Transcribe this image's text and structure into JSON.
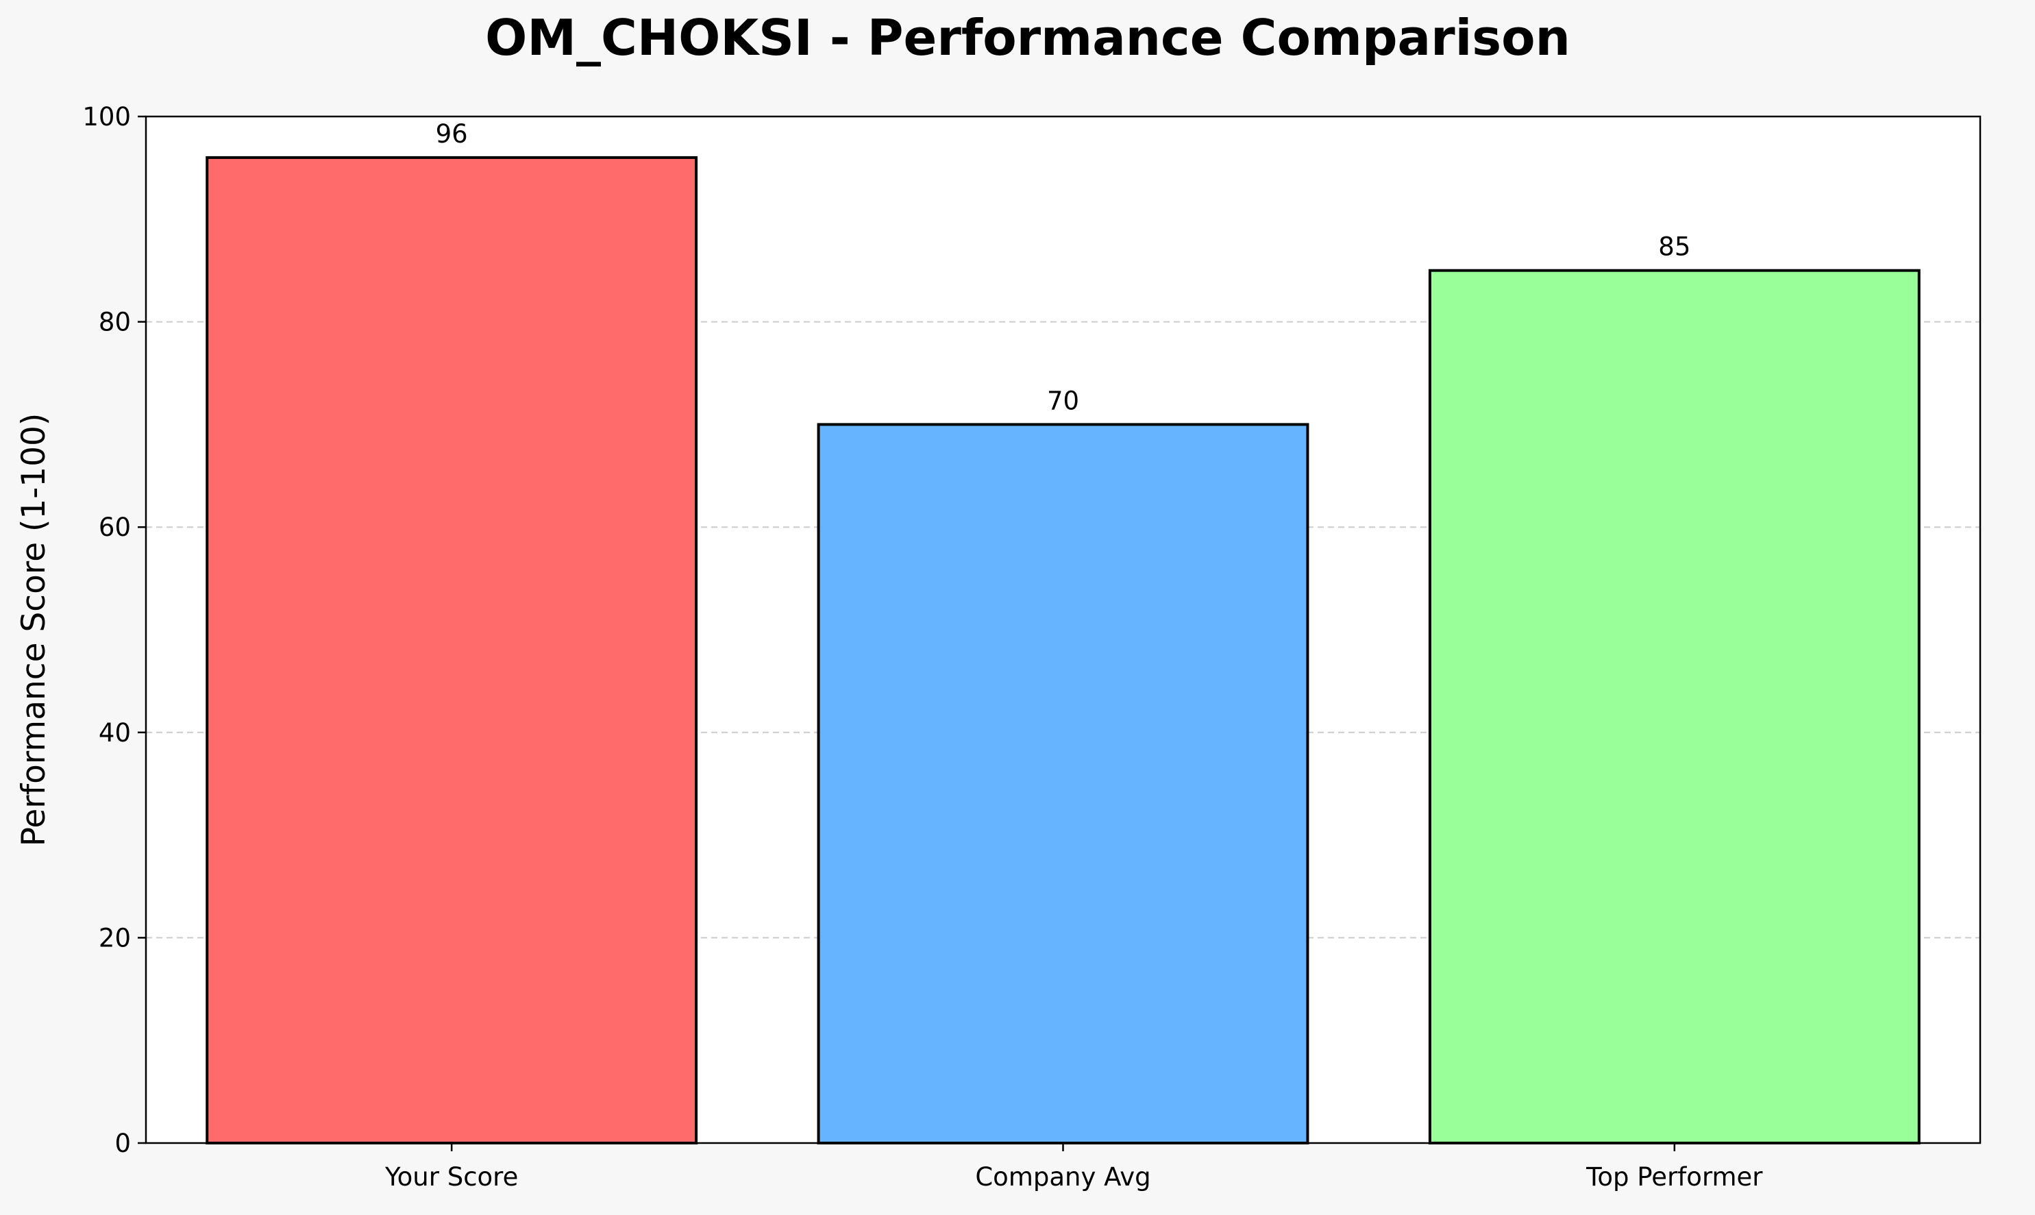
{
  "chart_data": {
    "type": "bar",
    "title": "OM_CHOKSI - Performance Comparison",
    "xlabel": "",
    "ylabel": "Performance Score (1-100)",
    "categories": [
      "Your Score",
      "Company Avg",
      "Top Performer"
    ],
    "values": [
      96,
      70,
      85
    ],
    "data_labels": [
      "96",
      "70",
      "85"
    ],
    "colors": [
      "#ff6b6b",
      "#66b3ff",
      "#99ff99"
    ],
    "ylim": [
      0,
      100
    ],
    "yticks": [
      0,
      20,
      40,
      60,
      80,
      100
    ],
    "grid": "y-dashed",
    "legend": "none"
  }
}
